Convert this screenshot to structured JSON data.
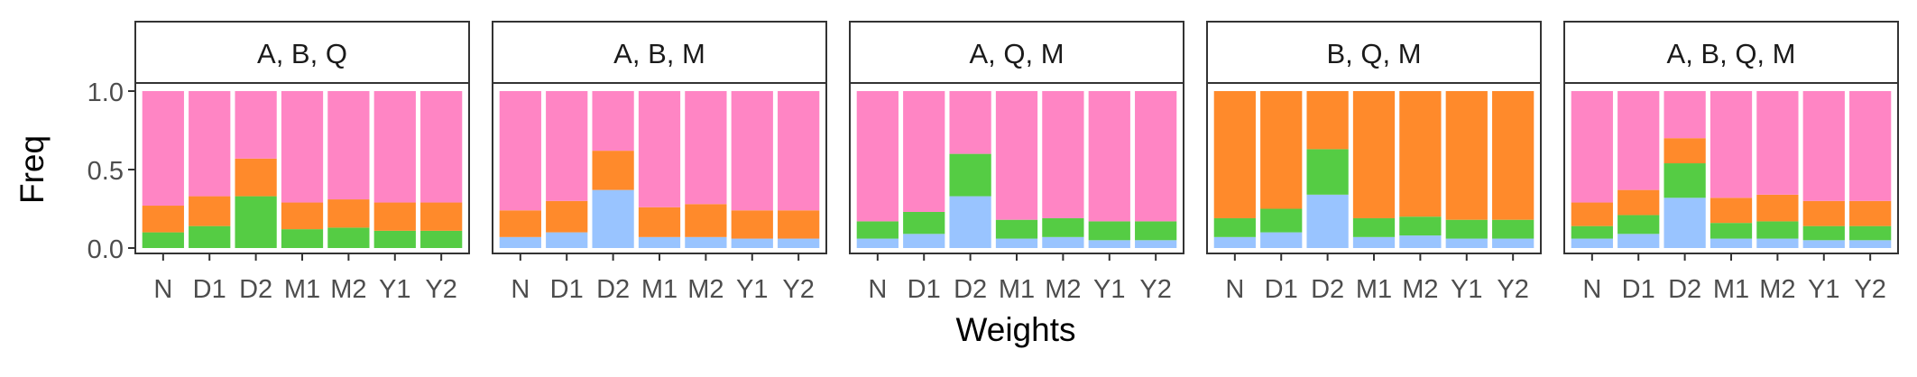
{
  "chart_data": {
    "type": "bar",
    "stacked": true,
    "ylabel": "Freq",
    "xlabel": "Weights",
    "ylim": [
      0,
      1.4
    ],
    "yticks": [
      0.0,
      0.5,
      1.0
    ],
    "ytick_labels": [
      "0.0",
      "0.5",
      "1.0"
    ],
    "categories": [
      "N",
      "D1",
      "D2",
      "M1",
      "M2",
      "Y1",
      "Y2"
    ],
    "grid": false,
    "legend": "none",
    "colors": {
      "A": "#FF85C4",
      "B": "#FF8A2B",
      "Q": "#55CC44",
      "M": "#99C4FF"
    },
    "panels": [
      {
        "title": "A, B, Q",
        "stack_order": [
          "Q",
          "B",
          "A"
        ],
        "series": [
          {
            "key": "Q",
            "values": [
              0.1,
              0.14,
              0.33,
              0.12,
              0.13,
              0.11,
              0.11
            ]
          },
          {
            "key": "B",
            "values": [
              0.17,
              0.19,
              0.24,
              0.17,
              0.18,
              0.18,
              0.18
            ]
          },
          {
            "key": "A",
            "values": [
              0.73,
              0.67,
              0.43,
              0.71,
              0.69,
              0.71,
              0.71
            ]
          }
        ]
      },
      {
        "title": "A, B, M",
        "stack_order": [
          "M",
          "B",
          "A"
        ],
        "series": [
          {
            "key": "M",
            "values": [
              0.07,
              0.1,
              0.37,
              0.07,
              0.07,
              0.06,
              0.06
            ]
          },
          {
            "key": "B",
            "values": [
              0.17,
              0.2,
              0.25,
              0.19,
              0.21,
              0.18,
              0.18
            ]
          },
          {
            "key": "A",
            "values": [
              0.76,
              0.7,
              0.38,
              0.74,
              0.72,
              0.76,
              0.76
            ]
          }
        ]
      },
      {
        "title": "A, Q, M",
        "stack_order": [
          "M",
          "Q",
          "A"
        ],
        "series": [
          {
            "key": "M",
            "values": [
              0.06,
              0.09,
              0.33,
              0.06,
              0.07,
              0.05,
              0.05
            ]
          },
          {
            "key": "Q",
            "values": [
              0.11,
              0.14,
              0.27,
              0.12,
              0.12,
              0.12,
              0.12
            ]
          },
          {
            "key": "A",
            "values": [
              0.83,
              0.77,
              0.4,
              0.82,
              0.81,
              0.83,
              0.83
            ]
          }
        ]
      },
      {
        "title": "B, Q, M",
        "stack_order": [
          "M",
          "Q",
          "B"
        ],
        "series": [
          {
            "key": "M",
            "values": [
              0.07,
              0.1,
              0.34,
              0.07,
              0.08,
              0.06,
              0.06
            ]
          },
          {
            "key": "Q",
            "values": [
              0.12,
              0.15,
              0.29,
              0.12,
              0.12,
              0.12,
              0.12
            ]
          },
          {
            "key": "B",
            "values": [
              0.81,
              0.75,
              0.37,
              0.81,
              0.8,
              0.82,
              0.82
            ]
          }
        ]
      },
      {
        "title": "A, B, Q, M",
        "stack_order": [
          "M",
          "Q",
          "B",
          "A"
        ],
        "series": [
          {
            "key": "M",
            "values": [
              0.06,
              0.09,
              0.32,
              0.06,
              0.06,
              0.05,
              0.05
            ]
          },
          {
            "key": "Q",
            "values": [
              0.08,
              0.12,
              0.22,
              0.1,
              0.11,
              0.09,
              0.09
            ]
          },
          {
            "key": "B",
            "values": [
              0.15,
              0.16,
              0.16,
              0.16,
              0.17,
              0.16,
              0.16
            ]
          },
          {
            "key": "A",
            "values": [
              0.71,
              0.63,
              0.3,
              0.68,
              0.66,
              0.7,
              0.7
            ]
          }
        ]
      }
    ]
  }
}
